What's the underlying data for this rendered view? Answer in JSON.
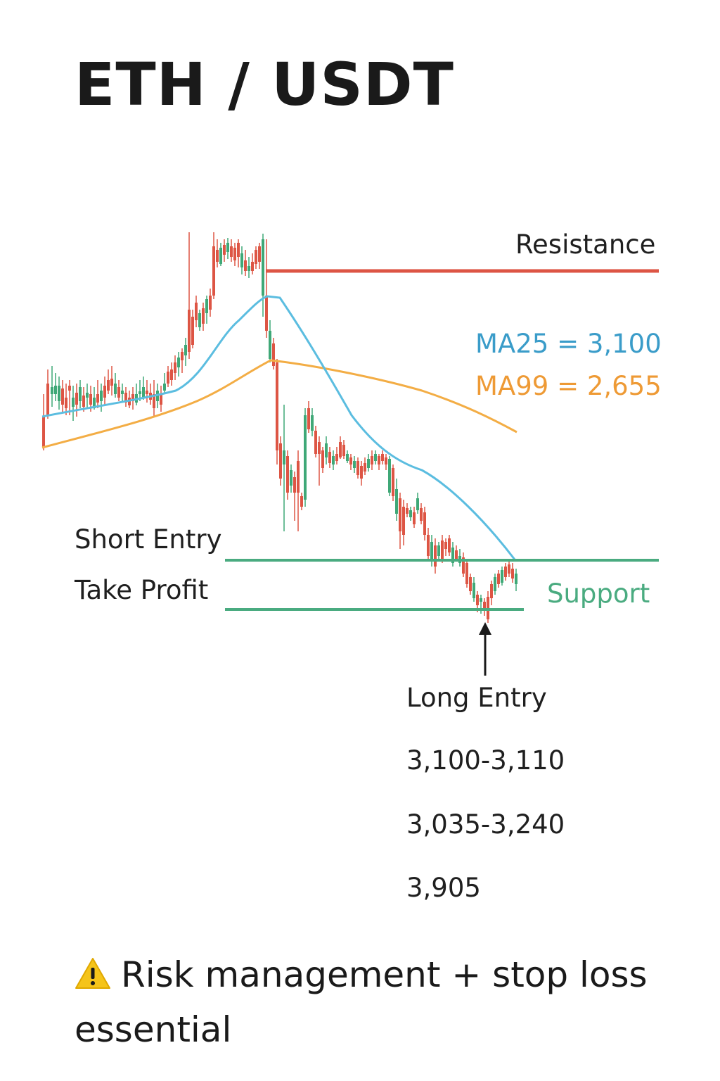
{
  "title": "ETH / USDT",
  "colors": {
    "bull": "#3fa877",
    "bear": "#dd5544",
    "resistance": "#dd5544",
    "levels": "#4aab80",
    "ma25": "#5bbde0",
    "ma99": "#f3ad45",
    "ma25_text": "#3a9cc9",
    "ma99_text": "#ee9a35",
    "support_text": "#4aab80"
  },
  "labels": {
    "resistance": "Resistance",
    "ma25": "MA25 = 3,100",
    "ma99": "MA99 = 2,655",
    "short_entry": "Short Entry",
    "take_profit": "Take Profit",
    "support": "Support",
    "long_entry": "Long Entry",
    "level_1": "3,100-3,110",
    "level_2": "3,035-3,240",
    "level_3": "3,905"
  },
  "warning": {
    "icon": "warning-icon",
    "text": "Risk management + stop loss essential"
  },
  "chart_data": {
    "type": "candlestick",
    "note_axes": "no axes or tick labels shown",
    "ma_labels": [
      "MA25 = 3,100",
      "MA99 = 2,655"
    ],
    "price_levels": [
      "Resistance",
      "Short Entry",
      "Take Profit",
      "Support"
    ],
    "annotation": "Long Entry"
  }
}
